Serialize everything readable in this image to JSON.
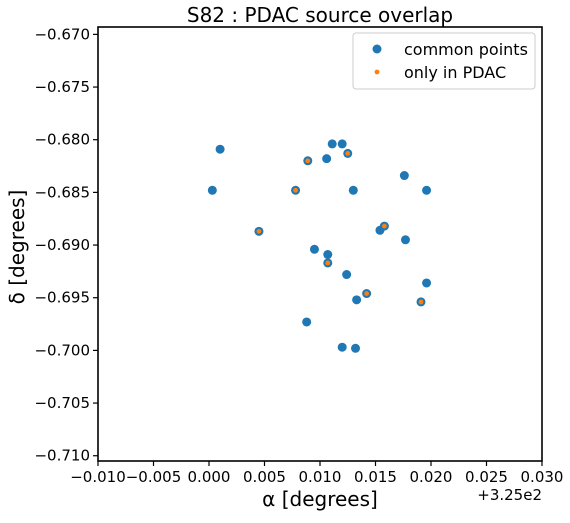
{
  "chart_data": {
    "type": "scatter",
    "title": "S82 : PDAC source overlap",
    "xlabel": "α [degrees]",
    "ylabel": "δ [degrees]",
    "x_offset_label": "+3.25e2",
    "xlim": [
      -0.01,
      0.03
    ],
    "ylim": [
      -0.7105,
      -0.6693
    ],
    "x_ticks": [
      -0.01,
      -0.005,
      0.0,
      0.005,
      0.01,
      0.015,
      0.02,
      0.025,
      0.03
    ],
    "x_tick_labels": [
      "−0.010",
      "−0.005",
      "0.000",
      "0.005",
      "0.010",
      "0.015",
      "0.020",
      "0.025",
      "0.030"
    ],
    "y_ticks": [
      -0.67,
      -0.675,
      -0.68,
      -0.685,
      -0.69,
      -0.695,
      -0.7,
      -0.705,
      -0.71
    ],
    "y_tick_labels": [
      "−0.670",
      "−0.675",
      "−0.680",
      "−0.685",
      "−0.690",
      "−0.695",
      "−0.700",
      "−0.705",
      "−0.710"
    ],
    "legend_position": "top-right",
    "grid": false,
    "series": [
      {
        "name": "common points",
        "color": "#1f77b4",
        "marker_size": 4.5,
        "points": [
          [
            0.001,
            -0.6809
          ],
          [
            0.0003,
            -0.6848
          ],
          [
            0.0078,
            -0.6848
          ],
          [
            0.0089,
            -0.682
          ],
          [
            0.0106,
            -0.6818
          ],
          [
            0.0111,
            -0.6804
          ],
          [
            0.012,
            -0.6804
          ],
          [
            0.0125,
            -0.6813
          ],
          [
            0.013,
            -0.6848
          ],
          [
            0.0176,
            -0.6834
          ],
          [
            0.0196,
            -0.6848
          ],
          [
            0.0045,
            -0.6887
          ],
          [
            0.0095,
            -0.6904
          ],
          [
            0.0107,
            -0.6909
          ],
          [
            0.0107,
            -0.6917
          ],
          [
            0.0124,
            -0.6928
          ],
          [
            0.0154,
            -0.6886
          ],
          [
            0.0158,
            -0.6882
          ],
          [
            0.0177,
            -0.6895
          ],
          [
            0.0196,
            -0.6936
          ],
          [
            0.0142,
            -0.6946
          ],
          [
            0.0133,
            -0.6952
          ],
          [
            0.0191,
            -0.6954
          ],
          [
            0.0088,
            -0.6973
          ],
          [
            0.012,
            -0.6997
          ],
          [
            0.0132,
            -0.6998
          ]
        ]
      },
      {
        "name": "only in PDAC",
        "color": "#ff7f0e",
        "marker_size": 2.4,
        "points": [
          [
            0.0089,
            -0.682
          ],
          [
            0.0125,
            -0.6813
          ],
          [
            0.0078,
            -0.6848
          ],
          [
            0.0045,
            -0.6887
          ],
          [
            0.0158,
            -0.6882
          ],
          [
            0.0107,
            -0.6917
          ],
          [
            0.0142,
            -0.6946
          ],
          [
            0.0191,
            -0.6954
          ]
        ]
      }
    ]
  }
}
